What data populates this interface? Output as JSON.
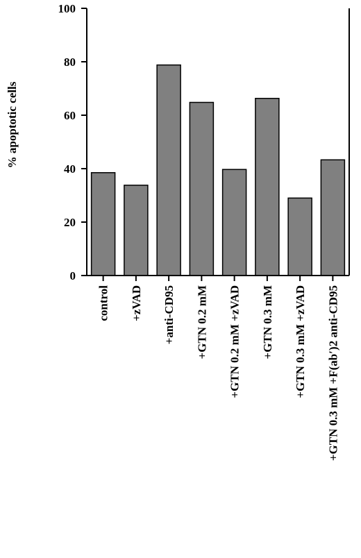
{
  "chart_data": {
    "type": "bar",
    "ylabel": "% apoptotic cells",
    "xlabel": "",
    "ylim": [
      0,
      100
    ],
    "yticks": [
      0,
      20,
      40,
      60,
      80,
      100
    ],
    "grid": false,
    "categories": [
      "control",
      "+zVAD",
      "+anti-CD95",
      "+GTN 0.2 mM",
      "+GTN 0.2 mM +zVAD",
      "+GTN 0.3 mM",
      "+GTN 0.3 mM +zVAD",
      "+GTN 0.3 mM +F(ab′)2 anti-CD95"
    ],
    "values": [
      38.5,
      33.8,
      78.8,
      64.8,
      39.7,
      66.3,
      29.0,
      43.3
    ],
    "bar_color": "#808080"
  }
}
